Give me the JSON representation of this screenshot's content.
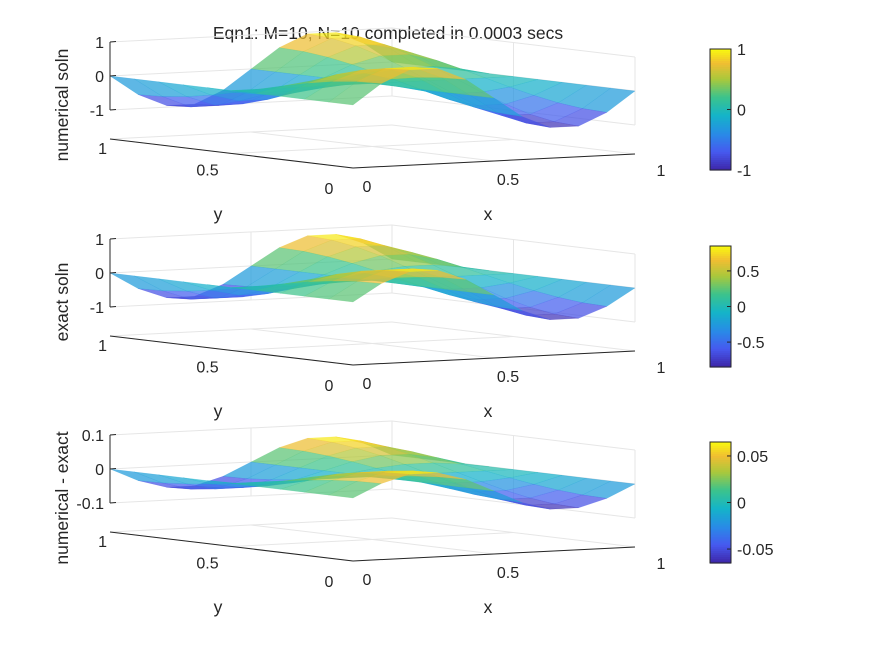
{
  "figure": {
    "title": "Eqn1: M=10, N=10 completed in 0.0003 secs"
  },
  "colormap": "parula",
  "chart_data": [
    {
      "type": "surface3d",
      "zlabel": "numerical soln",
      "xlabel": "x",
      "ylabel": "y",
      "xlim": [
        0,
        1
      ],
      "ylim": [
        0,
        1
      ],
      "zlim": [
        -1,
        1
      ],
      "xticks": [
        "0",
        "0.5",
        "1"
      ],
      "yticks": [
        "0",
        "0.5",
        "1"
      ],
      "zticks": [
        "-1",
        "0",
        "1"
      ],
      "zticks_values": [
        -1,
        0,
        1
      ],
      "colorbar": {
        "ticks": [
          "-1",
          "0",
          "1"
        ],
        "tick_values": [
          -1,
          0,
          1
        ],
        "range": [
          -1,
          1
        ]
      },
      "grid_size": 10,
      "amplitude": 1
    },
    {
      "type": "surface3d",
      "zlabel": "exact soln",
      "xlabel": "x",
      "ylabel": "y",
      "xlim": [
        0,
        1
      ],
      "ylim": [
        0,
        1
      ],
      "zlim": [
        -1,
        1
      ],
      "xticks": [
        "0",
        "0.5",
        "1"
      ],
      "yticks": [
        "0",
        "0.5",
        "1"
      ],
      "zticks": [
        "-1",
        "0",
        "1"
      ],
      "zticks_values": [
        -1,
        0,
        1
      ],
      "colorbar": {
        "ticks": [
          "-0.5",
          "0",
          "0.5"
        ],
        "tick_values": [
          -0.5,
          0,
          0.5
        ],
        "range": [
          -0.85,
          0.85
        ]
      },
      "grid_size": 10,
      "amplitude": 0.85
    },
    {
      "type": "surface3d",
      "zlabel": "numerical - exact",
      "xlabel": "x",
      "ylabel": "y",
      "xlim": [
        0,
        1
      ],
      "ylim": [
        0,
        1
      ],
      "zlim": [
        -0.1,
        0.1
      ],
      "xticks": [
        "0",
        "0.5",
        "1"
      ],
      "yticks": [
        "0",
        "0.5",
        "1"
      ],
      "zticks": [
        "-0.1",
        "0",
        "0.1"
      ],
      "zticks_values": [
        -0.1,
        0,
        0.1
      ],
      "colorbar": {
        "ticks": [
          "-0.05",
          "0",
          "0.05"
        ],
        "tick_values": [
          -0.05,
          0,
          0.05
        ],
        "range": [
          -0.065,
          0.065
        ]
      },
      "grid_size": 10,
      "amplitude": 0.065
    }
  ]
}
